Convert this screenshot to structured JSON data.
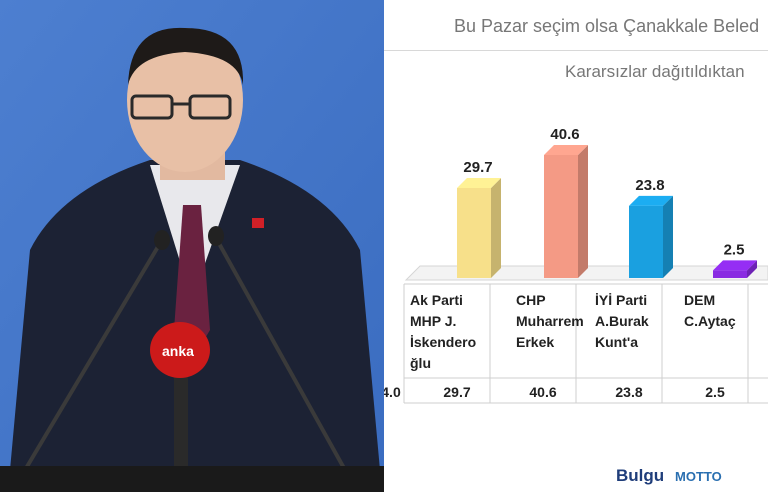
{
  "photo": {
    "mic_logo_text": "anka"
  },
  "chart": {
    "title": "Bu Pazar seçim olsa Çanakkale Beled",
    "subtitle": "Kararsızlar dağıtıldıktan",
    "logo_main": "Bulgu",
    "logo_second": "MOTTO"
  },
  "chart_data": {
    "type": "bar",
    "title": "Bu Pazar seçim olsa Çanakkale Beled",
    "subtitle": "Kararsızlar dağıtıldıktan",
    "categories": [
      [
        "Ak Parti",
        "MHP J.",
        "İskendero",
        "ğlu"
      ],
      [
        "CHP",
        "Muharrem",
        "Erkek"
      ],
      [
        "İYİ Parti",
        "A.Burak",
        "Kunt'a"
      ],
      [
        "DEM",
        "C.Aytaç"
      ]
    ],
    "values": [
      29.7,
      40.6,
      23.8,
      2.5
    ],
    "value_labels": [
      "29.7",
      "40.6",
      "23.8",
      "2.5"
    ],
    "table_row": [
      "4.0",
      "29.7",
      "40.6",
      "23.8",
      "2.5"
    ],
    "colors": [
      "#f7e08a",
      "#f49a85",
      "#1aa0e0",
      "#8a2be2"
    ],
    "ylim": [
      0,
      45
    ],
    "grid": false
  }
}
